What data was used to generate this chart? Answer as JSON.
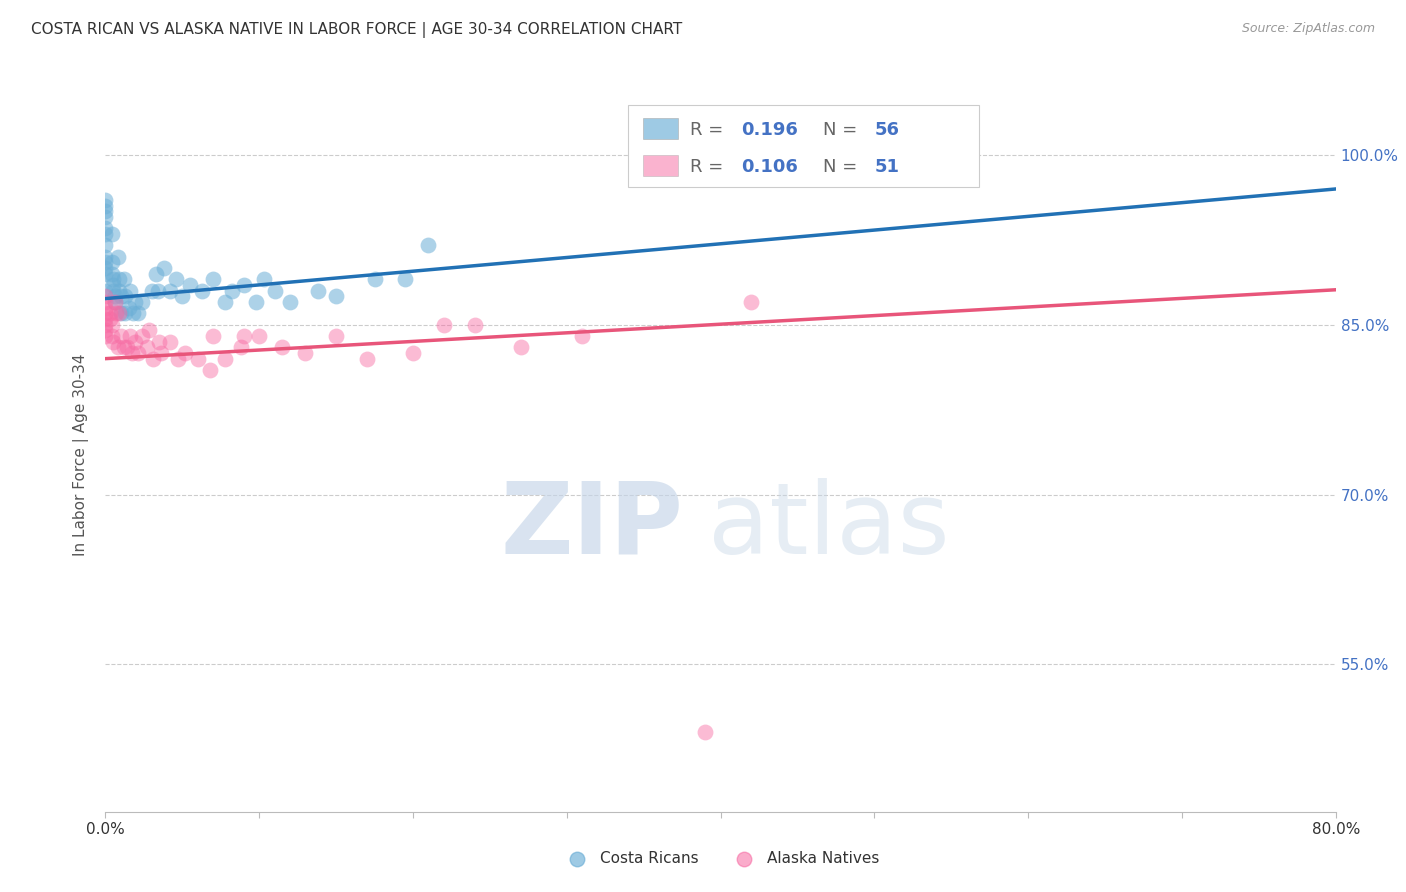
{
  "title": "COSTA RICAN VS ALASKA NATIVE IN LABOR FORCE | AGE 30-34 CORRELATION CHART",
  "source": "Source: ZipAtlas.com",
  "ylabel": "In Labor Force | Age 30-34",
  "xlim": [
    0.0,
    0.8
  ],
  "ylim": [
    0.42,
    1.05
  ],
  "blue_color": "#6baed6",
  "pink_color": "#f768a1",
  "blue_line_color": "#2171b5",
  "pink_line_color": "#e8557a",
  "blue_r": "0.196",
  "blue_n": "56",
  "pink_r": "0.106",
  "pink_n": "51",
  "costa_rican_x": [
    0.0,
    0.0,
    0.0,
    0.0,
    0.0,
    0.0,
    0.0,
    0.0,
    0.0,
    0.0,
    0.0,
    0.0,
    0.004,
    0.004,
    0.004,
    0.005,
    0.005,
    0.005,
    0.006,
    0.006,
    0.008,
    0.009,
    0.009,
    0.01,
    0.01,
    0.012,
    0.013,
    0.013,
    0.015,
    0.016,
    0.018,
    0.019,
    0.021,
    0.024,
    0.03,
    0.033,
    0.034,
    0.038,
    0.042,
    0.046,
    0.05,
    0.055,
    0.063,
    0.07,
    0.078,
    0.082,
    0.09,
    0.098,
    0.103,
    0.11,
    0.12,
    0.138,
    0.15,
    0.175,
    0.195,
    0.21
  ],
  "costa_rican_y": [
    0.96,
    0.955,
    0.95,
    0.945,
    0.935,
    0.93,
    0.92,
    0.91,
    0.905,
    0.9,
    0.895,
    0.88,
    0.93,
    0.905,
    0.895,
    0.89,
    0.885,
    0.88,
    0.875,
    0.87,
    0.91,
    0.89,
    0.88,
    0.875,
    0.86,
    0.89,
    0.875,
    0.86,
    0.865,
    0.88,
    0.86,
    0.87,
    0.86,
    0.87,
    0.88,
    0.895,
    0.88,
    0.9,
    0.88,
    0.89,
    0.875,
    0.885,
    0.88,
    0.89,
    0.87,
    0.88,
    0.885,
    0.87,
    0.89,
    0.88,
    0.87,
    0.88,
    0.875,
    0.89,
    0.89,
    0.92
  ],
  "alaska_native_x": [
    0.0,
    0.0,
    0.0,
    0.0,
    0.0,
    0.0,
    0.0,
    0.0,
    0.003,
    0.003,
    0.004,
    0.004,
    0.005,
    0.006,
    0.007,
    0.008,
    0.009,
    0.01,
    0.012,
    0.014,
    0.016,
    0.017,
    0.019,
    0.021,
    0.024,
    0.027,
    0.028,
    0.031,
    0.035,
    0.036,
    0.042,
    0.047,
    0.052,
    0.06,
    0.068,
    0.07,
    0.078,
    0.088,
    0.09,
    0.1,
    0.115,
    0.13,
    0.15,
    0.17,
    0.2,
    0.22,
    0.24,
    0.27,
    0.31,
    0.39,
    0.42
  ],
  "alaska_native_y": [
    0.875,
    0.87,
    0.865,
    0.86,
    0.855,
    0.85,
    0.845,
    0.84,
    0.86,
    0.855,
    0.85,
    0.84,
    0.835,
    0.87,
    0.86,
    0.83,
    0.86,
    0.84,
    0.83,
    0.83,
    0.84,
    0.825,
    0.835,
    0.825,
    0.84,
    0.83,
    0.845,
    0.82,
    0.835,
    0.825,
    0.835,
    0.82,
    0.825,
    0.82,
    0.81,
    0.84,
    0.82,
    0.83,
    0.84,
    0.84,
    0.83,
    0.825,
    0.84,
    0.82,
    0.825,
    0.85,
    0.85,
    0.83,
    0.84,
    0.49,
    0.87
  ]
}
